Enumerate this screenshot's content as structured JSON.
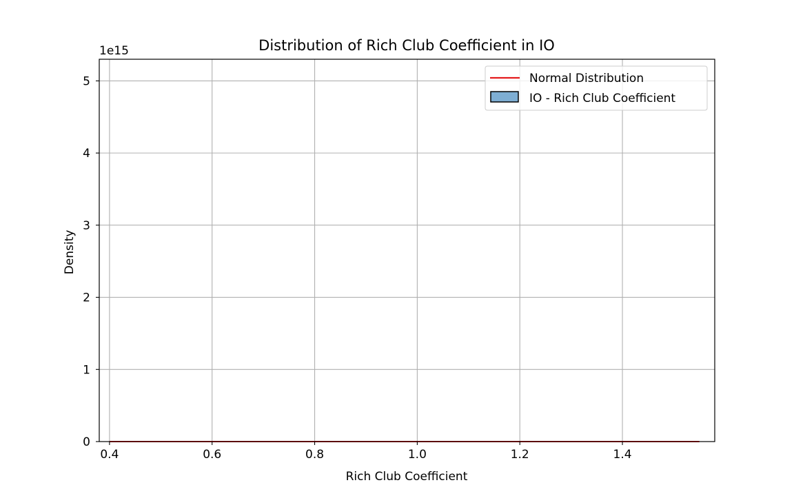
{
  "chart_data": {
    "type": "bar",
    "title": "Distribution of Rich Club Coefficient in IO",
    "xlabel": "Rich Club Coefficient",
    "ylabel": "Density",
    "y_offset_label": "1e15",
    "xlim": [
      0.38,
      1.58
    ],
    "ylim": [
      0,
      5.3
    ],
    "x_ticks": [
      0.4,
      0.6,
      0.8,
      1.0,
      1.2,
      1.4
    ],
    "x_tick_labels": [
      "0.4",
      "0.6",
      "0.8",
      "1.0",
      "1.2",
      "1.4"
    ],
    "y_ticks": [
      0,
      1,
      2,
      3,
      4,
      5
    ],
    "y_tick_labels": [
      "0",
      "1",
      "2",
      "3",
      "4",
      "5"
    ],
    "grid": true,
    "legend_position": "top-right",
    "series": [
      {
        "name": "Normal Distribution",
        "kind": "line",
        "color": "#e41a1c",
        "x": [
          0.4,
          1.55
        ],
        "y": [
          0,
          0
        ]
      },
      {
        "name": "IO - Rich Club Coefficient",
        "kind": "histogram",
        "color": "#7eaed3",
        "edge_color": "#000000",
        "x": [],
        "values": []
      }
    ]
  }
}
